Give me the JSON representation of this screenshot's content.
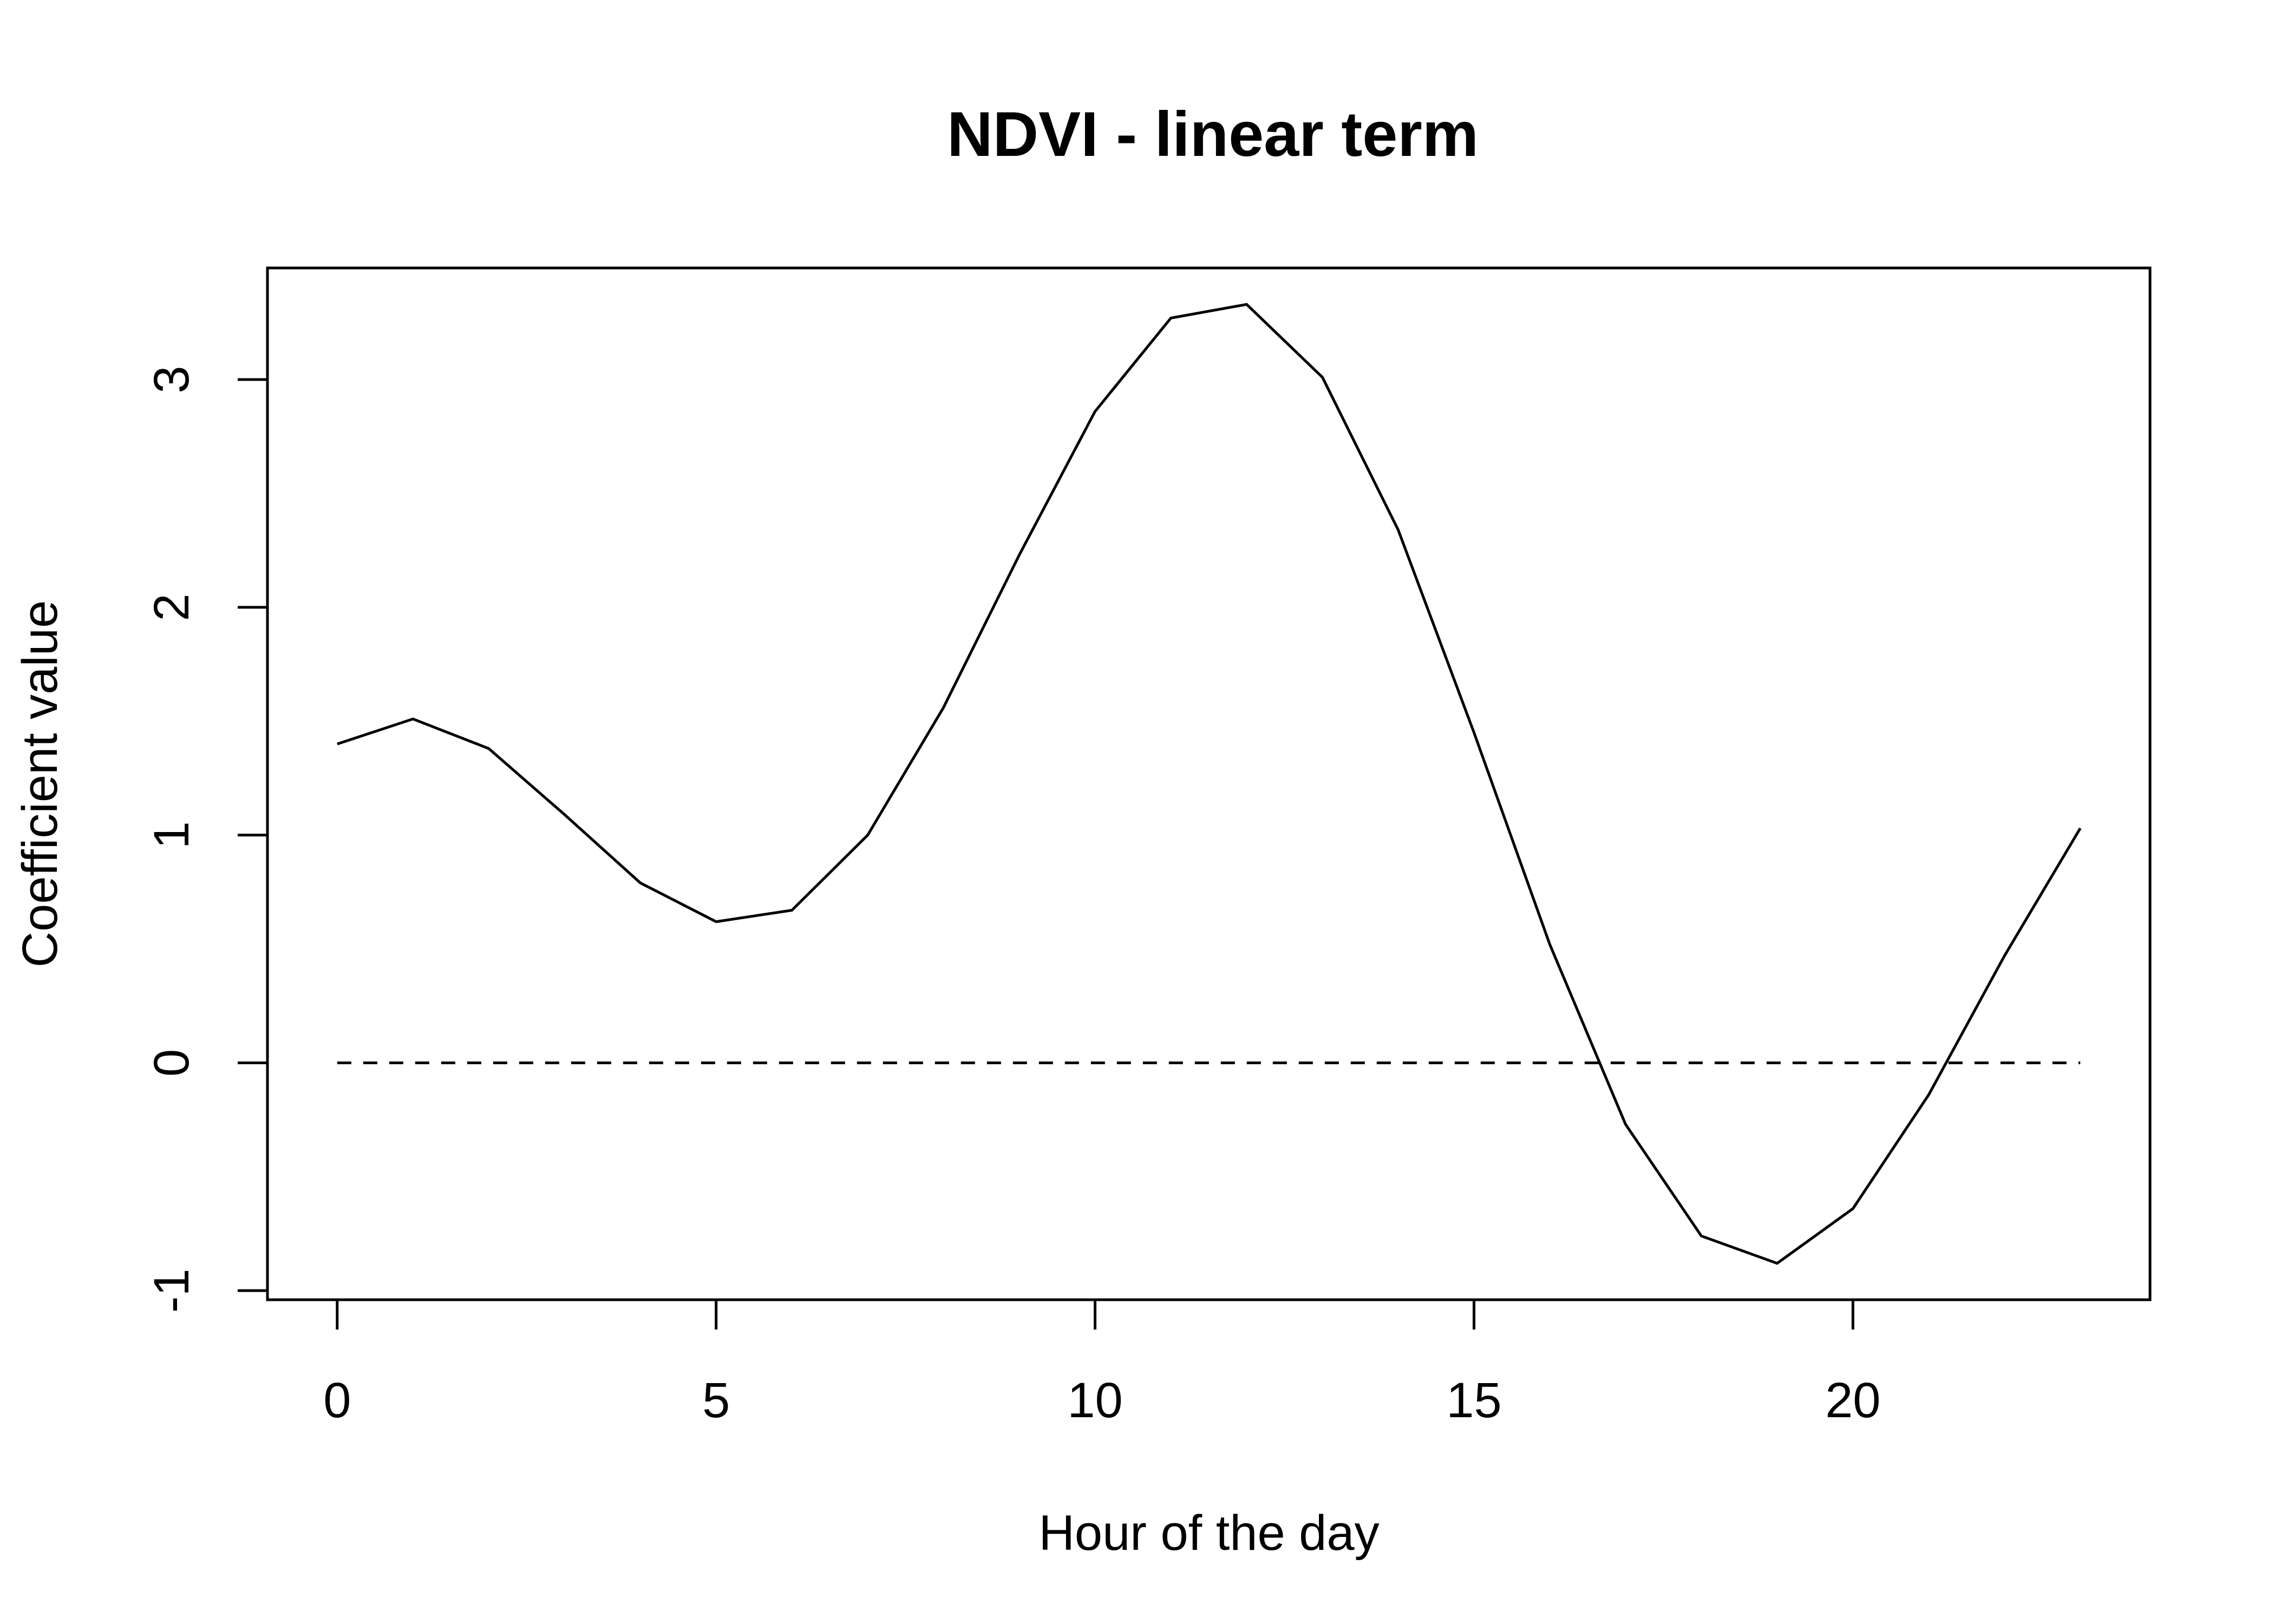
{
  "chart_data": {
    "type": "line",
    "title": "NDVI - linear term",
    "xlabel": "Hour of the day",
    "ylabel": "Coefficient value",
    "xlim": [
      -0.92,
      23.92
    ],
    "ylim": [
      -1.04,
      3.49
    ],
    "x_ticks": [
      0,
      5,
      10,
      15,
      20
    ],
    "y_ticks": [
      -1,
      0,
      1,
      2,
      3
    ],
    "x_tick_labels": [
      "0",
      "5",
      "10",
      "15",
      "20"
    ],
    "y_tick_labels": [
      "-1",
      "0",
      "1",
      "2",
      "3"
    ],
    "grid": false,
    "legend": "none",
    "series": [
      {
        "x": [
          0,
          1,
          2,
          3,
          4,
          5,
          6,
          7,
          8,
          9,
          10,
          11,
          12,
          13,
          14,
          15,
          16,
          17,
          18,
          19,
          20,
          21,
          22,
          23
        ],
        "values": [
          1.4,
          1.51,
          1.38,
          1.09,
          0.79,
          0.62,
          0.67,
          1.0,
          1.56,
          2.23,
          2.86,
          3.27,
          3.33,
          3.01,
          2.34,
          1.45,
          0.52,
          -0.27,
          -0.76,
          -0.88,
          -0.64,
          -0.14,
          0.47,
          1.03
        ],
        "color": "#000000",
        "style": "solid"
      },
      {
        "x": [
          0,
          23
        ],
        "values": [
          0,
          0
        ],
        "color": "#000000",
        "style": "dashed"
      }
    ]
  }
}
